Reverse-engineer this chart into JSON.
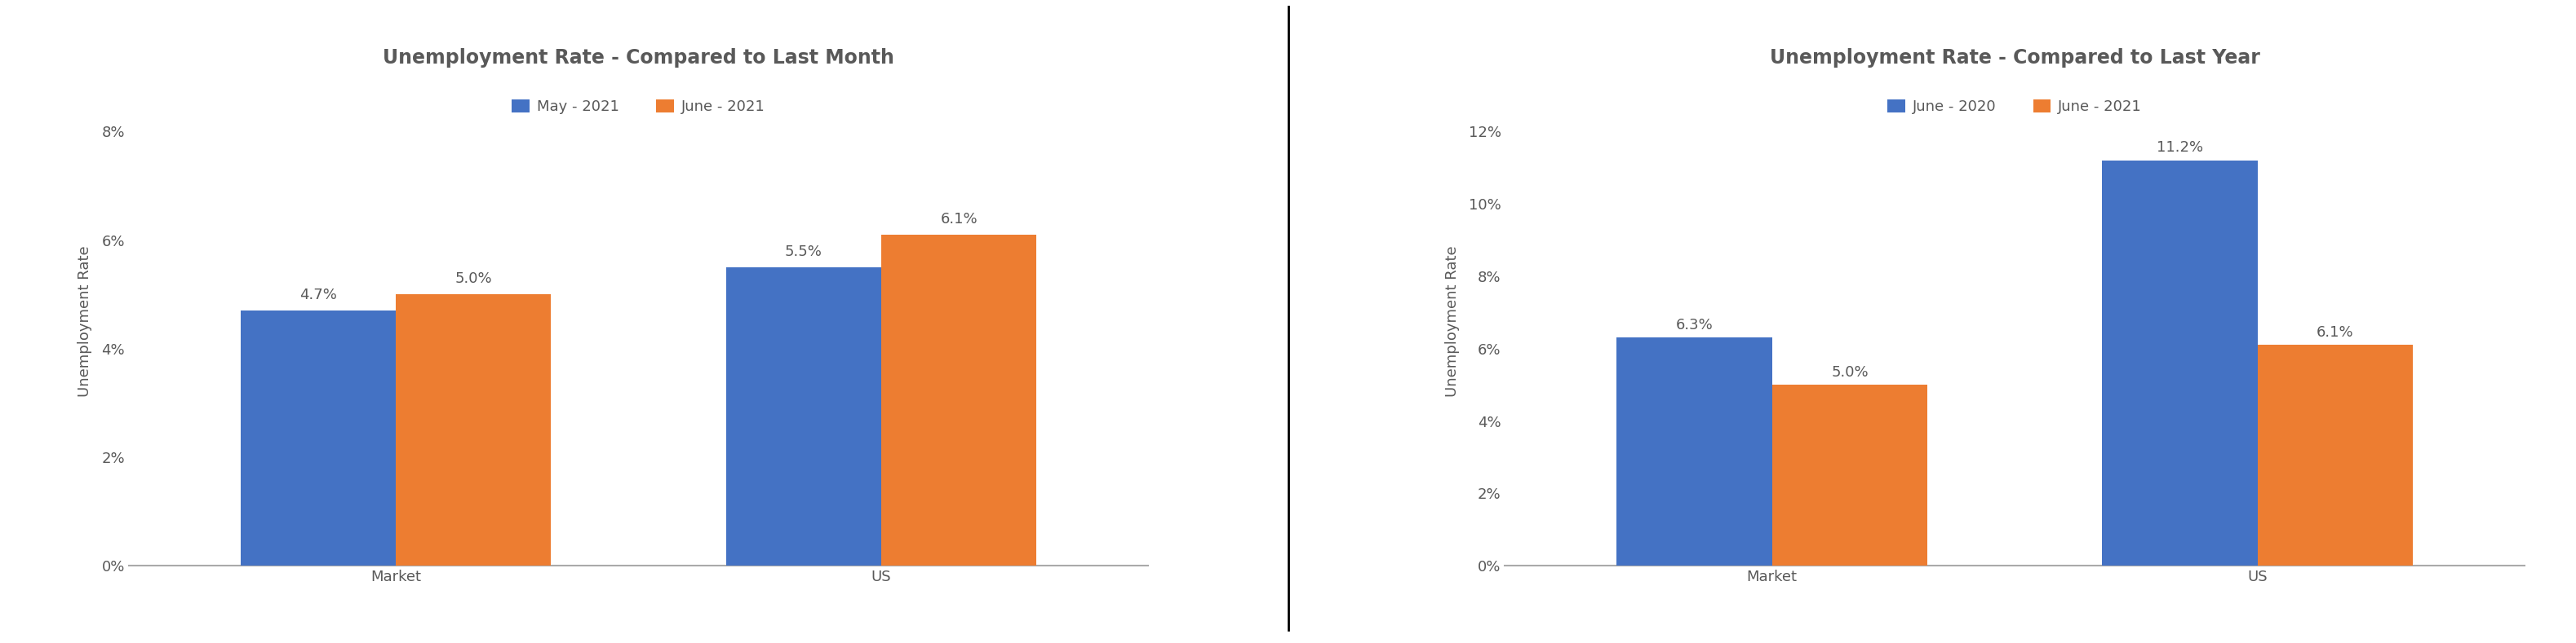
{
  "chart1": {
    "title": "Unemployment Rate - Compared to Last Month",
    "categories": [
      "Market",
      "US"
    ],
    "series": [
      {
        "label": "May - 2021",
        "values": [
          4.7,
          5.5
        ],
        "color": "#4472C4"
      },
      {
        "label": "June - 2021",
        "values": [
          5.0,
          6.1
        ],
        "color": "#ED7D31"
      }
    ],
    "ylabel": "Unemployment Rate",
    "ylim": [
      0,
      0.09
    ],
    "yticks": [
      0,
      0.02,
      0.04,
      0.06,
      0.08
    ],
    "bar_labels": [
      [
        "4.7%",
        "5.5%"
      ],
      [
        "5.0%",
        "6.1%"
      ]
    ]
  },
  "chart2": {
    "title": "Unemployment Rate - Compared to Last Year",
    "categories": [
      "Market",
      "US"
    ],
    "series": [
      {
        "label": "June - 2020",
        "values": [
          6.3,
          11.2
        ],
        "color": "#4472C4"
      },
      {
        "label": "June - 2021",
        "values": [
          5.0,
          6.1
        ],
        "color": "#ED7D31"
      }
    ],
    "ylabel": "Unemployment Rate",
    "ylim": [
      0,
      0.135
    ],
    "yticks": [
      0,
      0.02,
      0.04,
      0.06,
      0.08,
      0.1,
      0.12
    ],
    "bar_labels": [
      [
        "6.3%",
        "11.2%"
      ],
      [
        "5.0%",
        "6.1%"
      ]
    ]
  },
  "background_color": "#ffffff",
  "bar_width": 0.32,
  "title_fontsize": 17,
  "tick_fontsize": 13,
  "annotation_fontsize": 13,
  "legend_fontsize": 13,
  "ylabel_fontsize": 13,
  "divider_color": "#000000",
  "axis_color": "#aaaaaa",
  "text_color": "#595959"
}
